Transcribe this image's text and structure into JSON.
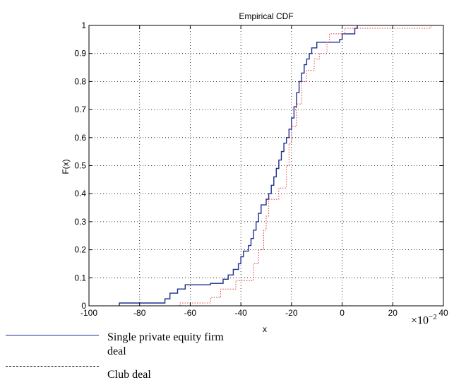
{
  "chart_data": {
    "type": "line",
    "title": "Empirical CDF",
    "xlabel": "x",
    "ylabel": "F(x)",
    "x_scale_note": {
      "base": "×10",
      "exponent": "−2"
    },
    "xlim": [
      -100,
      40
    ],
    "ylim": [
      0,
      1
    ],
    "xticks": [
      "-100",
      "-80",
      "-60",
      "-40",
      "-20",
      "0",
      "20",
      "40"
    ],
    "yticks": [
      "0",
      "0.1",
      "0.2",
      "0.3",
      "0.4",
      "0.5",
      "0.6",
      "0.7",
      "0.8",
      "0.9",
      "1"
    ],
    "grid": true,
    "series": [
      {
        "name": "Single private equity firm deal",
        "color": "#1f2f8f",
        "style": "solid-step",
        "points": [
          [
            -88,
            0
          ],
          [
            -88,
            0.01
          ],
          [
            -70,
            0.01
          ],
          [
            -70,
            0.025
          ],
          [
            -68,
            0.025
          ],
          [
            -68,
            0.045
          ],
          [
            -65,
            0.045
          ],
          [
            -65,
            0.06
          ],
          [
            -62,
            0.06
          ],
          [
            -62,
            0.075
          ],
          [
            -52,
            0.075
          ],
          [
            -52,
            0.08
          ],
          [
            -47,
            0.08
          ],
          [
            -47,
            0.095
          ],
          [
            -45,
            0.095
          ],
          [
            -45,
            0.11
          ],
          [
            -43,
            0.11
          ],
          [
            -43,
            0.13
          ],
          [
            -41,
            0.13
          ],
          [
            -41,
            0.15
          ],
          [
            -40,
            0.15
          ],
          [
            -40,
            0.175
          ],
          [
            -39,
            0.175
          ],
          [
            -39,
            0.195
          ],
          [
            -37,
            0.195
          ],
          [
            -37,
            0.215
          ],
          [
            -36,
            0.215
          ],
          [
            -36,
            0.24
          ],
          [
            -35,
            0.24
          ],
          [
            -35,
            0.27
          ],
          [
            -34,
            0.27
          ],
          [
            -34,
            0.3
          ],
          [
            -33,
            0.3
          ],
          [
            -33,
            0.33
          ],
          [
            -32,
            0.33
          ],
          [
            -32,
            0.36
          ],
          [
            -30,
            0.36
          ],
          [
            -30,
            0.38
          ],
          [
            -29,
            0.38
          ],
          [
            -29,
            0.4
          ],
          [
            -28,
            0.4
          ],
          [
            -28,
            0.43
          ],
          [
            -27,
            0.43
          ],
          [
            -27,
            0.46
          ],
          [
            -26,
            0.46
          ],
          [
            -26,
            0.49
          ],
          [
            -25,
            0.49
          ],
          [
            -25,
            0.52
          ],
          [
            -24,
            0.52
          ],
          [
            -24,
            0.55
          ],
          [
            -23,
            0.55
          ],
          [
            -23,
            0.58
          ],
          [
            -22,
            0.58
          ],
          [
            -22,
            0.6
          ],
          [
            -21,
            0.6
          ],
          [
            -21,
            0.63
          ],
          [
            -20,
            0.63
          ],
          [
            -20,
            0.67
          ],
          [
            -19,
            0.67
          ],
          [
            -19,
            0.71
          ],
          [
            -18,
            0.71
          ],
          [
            -18,
            0.76
          ],
          [
            -17,
            0.76
          ],
          [
            -17,
            0.8
          ],
          [
            -16,
            0.8
          ],
          [
            -16,
            0.83
          ],
          [
            -15,
            0.83
          ],
          [
            -15,
            0.86
          ],
          [
            -14,
            0.86
          ],
          [
            -14,
            0.88
          ],
          [
            -13,
            0.88
          ],
          [
            -13,
            0.9
          ],
          [
            -12,
            0.9
          ],
          [
            -12,
            0.92
          ],
          [
            -10,
            0.92
          ],
          [
            -10,
            0.94
          ],
          [
            -1,
            0.94
          ],
          [
            -1,
            0.95
          ],
          [
            0,
            0.95
          ],
          [
            0,
            0.97
          ],
          [
            5,
            0.97
          ],
          [
            5,
            0.99
          ],
          [
            6,
            0.99
          ],
          [
            6,
            1.0
          ]
        ]
      },
      {
        "name": "Club deal",
        "color": "#e23a3a",
        "style": "dotted-step",
        "points": [
          [
            -64,
            0
          ],
          [
            -64,
            0.01
          ],
          [
            -52,
            0.01
          ],
          [
            -52,
            0.03
          ],
          [
            -48,
            0.03
          ],
          [
            -48,
            0.06
          ],
          [
            -42,
            0.06
          ],
          [
            -42,
            0.09
          ],
          [
            -35,
            0.09
          ],
          [
            -35,
            0.15
          ],
          [
            -33,
            0.15
          ],
          [
            -33,
            0.2
          ],
          [
            -31,
            0.2
          ],
          [
            -31,
            0.27
          ],
          [
            -30,
            0.27
          ],
          [
            -30,
            0.32
          ],
          [
            -29,
            0.32
          ],
          [
            -29,
            0.38
          ],
          [
            -25,
            0.38
          ],
          [
            -25,
            0.42
          ],
          [
            -22,
            0.42
          ],
          [
            -22,
            0.5
          ],
          [
            -21,
            0.5
          ],
          [
            -21,
            0.58
          ],
          [
            -20,
            0.58
          ],
          [
            -20,
            0.64
          ],
          [
            -18,
            0.64
          ],
          [
            -18,
            0.72
          ],
          [
            -16,
            0.72
          ],
          [
            -16,
            0.8
          ],
          [
            -14,
            0.8
          ],
          [
            -14,
            0.84
          ],
          [
            -11,
            0.84
          ],
          [
            -11,
            0.88
          ],
          [
            -9,
            0.88
          ],
          [
            -9,
            0.9
          ],
          [
            -6,
            0.9
          ],
          [
            -6,
            0.94
          ],
          [
            -5,
            0.94
          ],
          [
            -5,
            0.97
          ],
          [
            1,
            0.97
          ],
          [
            1,
            0.99
          ],
          [
            35,
            0.99
          ],
          [
            35,
            1.0
          ],
          [
            37,
            1.0
          ]
        ]
      }
    ],
    "legend": {
      "placement": "bottom-left",
      "entries": [
        {
          "line": "solid",
          "label_line1": "Single private equity firm",
          "label_line2": "deal"
        },
        {
          "line": "dashed",
          "label_line1": "Club deal"
        }
      ]
    }
  }
}
